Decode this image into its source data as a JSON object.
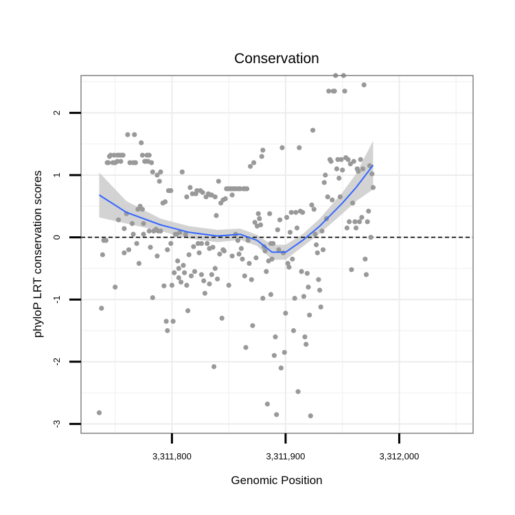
{
  "chart_data": {
    "type": "scatter",
    "title": "Conservation",
    "xlabel": "Genomic Position",
    "ylabel": "phyloP LRT conservation scores",
    "xlim": [
      3311720,
      3312065
    ],
    "ylim": [
      -3.15,
      2.6
    ],
    "x_ticks": [
      3311800,
      3311900,
      3312000
    ],
    "x_tick_labels": [
      "3,311,800",
      "3,311,900",
      "3,312,000"
    ],
    "x_minor_grid": [
      3311750,
      3311850,
      3311950,
      3312050
    ],
    "y_ticks": [
      -3,
      -2,
      -1,
      0,
      1,
      2
    ],
    "y_tick_labels": [
      "-3",
      "-2",
      "-1",
      "0",
      "1",
      "2"
    ],
    "grid": true,
    "reference_line": {
      "y": 0,
      "style": "dashed",
      "color": "#000000"
    },
    "colors": {
      "points": "#999999",
      "smooth_line": "#3366FF",
      "confidence_band": "#C8C8C8",
      "panel_border": "#808080"
    },
    "series": [
      {
        "kind": "points",
        "points": [
          [
            3311736,
            -2.82
          ],
          [
            3311738,
            -1.14
          ],
          [
            3311739,
            -0.28
          ],
          [
            3311740,
            -0.05
          ],
          [
            3311742,
            -0.05
          ],
          [
            3311743,
            1.2
          ],
          [
            3311744,
            1.2
          ],
          [
            3311745,
            1.3
          ],
          [
            3311746,
            1.32
          ],
          [
            3311748,
            1.2
          ],
          [
            3311749,
            1.32
          ],
          [
            3311750,
            1.2
          ],
          [
            3311750,
            -0.8
          ],
          [
            3311752,
            1.32
          ],
          [
            3311752,
            1.22
          ],
          [
            3311753,
            0.28
          ],
          [
            3311754,
            1.32
          ],
          [
            3311755,
            1.22
          ],
          [
            3311756,
            1.32
          ],
          [
            3311757,
            1.32
          ],
          [
            3311758,
            0.14
          ],
          [
            3311758,
            -0.25
          ],
          [
            3311760,
            0.38
          ],
          [
            3311761,
            1.65
          ],
          [
            3311762,
            -0.2
          ],
          [
            3311763,
            1.2
          ],
          [
            3311765,
            0.22
          ],
          [
            3311766,
            1.2
          ],
          [
            3311766,
            0.05
          ],
          [
            3311767,
            1.65
          ],
          [
            3311768,
            1.2
          ],
          [
            3311769,
            -0.1
          ],
          [
            3311770,
            0.45
          ],
          [
            3311771,
            -0.42
          ],
          [
            3311772,
            0.5
          ],
          [
            3311773,
            1.52
          ],
          [
            3311774,
            1.32
          ],
          [
            3311774,
            0.45
          ],
          [
            3311775,
            0.05
          ],
          [
            3311775,
            0.22
          ],
          [
            3311776,
            1.22
          ],
          [
            3311777,
            1.22
          ],
          [
            3311778,
            1.32
          ],
          [
            3311779,
            1.22
          ],
          [
            3311780,
            1.32
          ],
          [
            3311780,
            0.1
          ],
          [
            3311781,
            -0.16
          ],
          [
            3311782,
            1.2
          ],
          [
            3311783,
            -0.97
          ],
          [
            3311783,
            1.05
          ],
          [
            3311784,
            0.1
          ],
          [
            3311786,
            0.13
          ],
          [
            3311787,
            1.0
          ],
          [
            3311787,
            -0.3
          ],
          [
            3311788,
            0.1
          ],
          [
            3311789,
            0.9
          ],
          [
            3311790,
            1.05
          ],
          [
            3311790,
            0.1
          ],
          [
            3311792,
            0.55
          ],
          [
            3311793,
            -0.78
          ],
          [
            3311794,
            0.57
          ],
          [
            3311795,
            -1.35
          ],
          [
            3311796,
            -1.5
          ],
          [
            3311796,
            -0.2
          ],
          [
            3311797,
            0.75
          ],
          [
            3311799,
            0.75
          ],
          [
            3311799,
            -0.1
          ],
          [
            3311800,
            -0.77
          ],
          [
            3311801,
            -1.35
          ],
          [
            3311802,
            -0.57
          ],
          [
            3311803,
            0.05
          ],
          [
            3311804,
            0.05
          ],
          [
            3311805,
            -0.38
          ],
          [
            3311806,
            -0.65
          ],
          [
            3311806,
            -0.5
          ],
          [
            3311807,
            0.08
          ],
          [
            3311808,
            -0.72
          ],
          [
            3311809,
            1.05
          ],
          [
            3311810,
            -0.45
          ],
          [
            3311811,
            -0.57
          ],
          [
            3311812,
            0.05
          ],
          [
            3311813,
            0.65
          ],
          [
            3311813,
            -0.77
          ],
          [
            3311814,
            -1.18
          ],
          [
            3311815,
            -0.28
          ],
          [
            3311816,
            0.8
          ],
          [
            3311817,
            -0.62
          ],
          [
            3311818,
            0.7
          ],
          [
            3311819,
            -0.15
          ],
          [
            3311820,
            -0.55
          ],
          [
            3311821,
            0.7
          ],
          [
            3311822,
            0.75
          ],
          [
            3311823,
            -0.1
          ],
          [
            3311824,
            -0.25
          ],
          [
            3311825,
            0.75
          ],
          [
            3311826,
            -0.1
          ],
          [
            3311826,
            -0.6
          ],
          [
            3311827,
            0.72
          ],
          [
            3311828,
            -0.7
          ],
          [
            3311829,
            -0.9
          ],
          [
            3311830,
            0.65
          ],
          [
            3311831,
            -0.1
          ],
          [
            3311832,
            0.7
          ],
          [
            3311833,
            -0.18
          ],
          [
            3311833,
            -0.75
          ],
          [
            3311834,
            0.68
          ],
          [
            3311835,
            -0.6
          ],
          [
            3311835,
            0.68
          ],
          [
            3311836,
            -0.16
          ],
          [
            3311837,
            -2.08
          ],
          [
            3311838,
            0.65
          ],
          [
            3311838,
            -0.5
          ],
          [
            3311839,
            0.35
          ],
          [
            3311840,
            -0.67
          ],
          [
            3311841,
            0.9
          ],
          [
            3311842,
            -0.27
          ],
          [
            3311843,
            0.55
          ],
          [
            3311844,
            -1.3
          ],
          [
            3311845,
            -0.2
          ],
          [
            3311845,
            0.6
          ],
          [
            3311846,
            -0.22
          ],
          [
            3311847,
            0.62
          ],
          [
            3311848,
            0.78
          ],
          [
            3311849,
            0.78
          ],
          [
            3311850,
            -0.77
          ],
          [
            3311851,
            0.78
          ],
          [
            3311852,
            0.78
          ],
          [
            3311853,
            -0.3
          ],
          [
            3311853,
            0.68
          ],
          [
            3311854,
            0.78
          ],
          [
            3311855,
            0.78
          ],
          [
            3311856,
            0.05
          ],
          [
            3311857,
            0.78
          ],
          [
            3311858,
            -0.05
          ],
          [
            3311859,
            -0.27
          ],
          [
            3311859,
            0.78
          ],
          [
            3311860,
            0.78
          ],
          [
            3311861,
            -0.18
          ],
          [
            3311862,
            -0.35
          ],
          [
            3311863,
            0.78
          ],
          [
            3311864,
            0.78
          ],
          [
            3311864,
            -0.62
          ],
          [
            3311865,
            -1.77
          ],
          [
            3311866,
            0.78
          ],
          [
            3311867,
            -0.05
          ],
          [
            3311868,
            -0.42
          ],
          [
            3311869,
            1.14
          ],
          [
            3311870,
            -0.68
          ],
          [
            3311871,
            -1.42
          ],
          [
            3311872,
            1.2
          ],
          [
            3311873,
            0.24
          ],
          [
            3311874,
            -0.33
          ],
          [
            3311875,
            0.18
          ],
          [
            3311876,
            0.38
          ],
          [
            3311877,
            0.3
          ],
          [
            3311878,
            0.2
          ],
          [
            3311879,
            1.3
          ],
          [
            3311880,
            1.4
          ],
          [
            3311880,
            -0.98
          ],
          [
            3311881,
            -0.15
          ],
          [
            3311882,
            -0.22
          ],
          [
            3311883,
            -0.55
          ],
          [
            3311884,
            -2.68
          ],
          [
            3311885,
            -0.38
          ],
          [
            3311886,
            0.38
          ],
          [
            3311887,
            -0.1
          ],
          [
            3311887,
            -0.92
          ],
          [
            3311888,
            -0.35
          ],
          [
            3311889,
            -0.1
          ],
          [
            3311890,
            -1.9
          ],
          [
            3311891,
            -1.6
          ],
          [
            3311892,
            -2.85
          ],
          [
            3311893,
            0.12
          ],
          [
            3311894,
            -0.2
          ],
          [
            3311895,
            0.28
          ],
          [
            3311896,
            -2.1
          ],
          [
            3311897,
            1.44
          ],
          [
            3311898,
            -0.25
          ],
          [
            3311899,
            -1.85
          ],
          [
            3311900,
            -1.22
          ],
          [
            3311901,
            0.32
          ],
          [
            3311902,
            -0.42
          ],
          [
            3311903,
            -0.48
          ],
          [
            3311904,
            0.08
          ],
          [
            3311905,
            0.4
          ],
          [
            3311906,
            -0.35
          ],
          [
            3311907,
            -1.5
          ],
          [
            3311908,
            -0.98
          ],
          [
            3311909,
            0.4
          ],
          [
            3311910,
            0.15
          ],
          [
            3311911,
            -2.48
          ],
          [
            3311912,
            1.44
          ],
          [
            3311913,
            0.42
          ],
          [
            3311914,
            -0.55
          ],
          [
            3311915,
            0.4
          ],
          [
            3311916,
            -0.95
          ],
          [
            3311917,
            -1.6
          ],
          [
            3311918,
            -1.72
          ],
          [
            3311919,
            -0.58
          ],
          [
            3311920,
            -0.8
          ],
          [
            3311921,
            -1.25
          ],
          [
            3311922,
            -2.87
          ],
          [
            3311923,
            0.52
          ],
          [
            3311924,
            1.72
          ],
          [
            3311925,
            0.45
          ],
          [
            3311926,
            0.05
          ],
          [
            3311927,
            -0.12
          ],
          [
            3311928,
            -0.25
          ],
          [
            3311929,
            -0.68
          ],
          [
            3311930,
            -0.85
          ],
          [
            3311931,
            -1.12
          ],
          [
            3311932,
            0.1
          ],
          [
            3311933,
            -0.2
          ],
          [
            3311934,
            0.88
          ],
          [
            3311935,
            1.0
          ],
          [
            3311936,
            0.3
          ],
          [
            3311937,
            0.65
          ],
          [
            3311938,
            2.35
          ],
          [
            3311939,
            1.25
          ],
          [
            3311940,
            1.22
          ],
          [
            3311941,
            0.6
          ],
          [
            3311942,
            2.35
          ],
          [
            3311943,
            2.35
          ],
          [
            3311944,
            2.6
          ],
          [
            3311945,
            1.1
          ],
          [
            3311946,
            1.25
          ],
          [
            3311947,
            0.95
          ],
          [
            3311948,
            0.65
          ],
          [
            3311949,
            1.25
          ],
          [
            3311950,
            1.08
          ],
          [
            3311951,
            2.6
          ],
          [
            3311952,
            2.35
          ],
          [
            3311953,
            1.28
          ],
          [
            3311954,
            0.15
          ],
          [
            3311955,
            1.25
          ],
          [
            3311956,
            0.25
          ],
          [
            3311957,
            1.18
          ],
          [
            3311958,
            -0.52
          ],
          [
            3311959,
            0.55
          ],
          [
            3311960,
            1.22
          ],
          [
            3311961,
            0.25
          ],
          [
            3311962,
            0.15
          ],
          [
            3311963,
            1.1
          ],
          [
            3311964,
            1.06
          ],
          [
            3311965,
            0.25
          ],
          [
            3311966,
            1.25
          ],
          [
            3311967,
            0.32
          ],
          [
            3311968,
            1.1
          ],
          [
            3311969,
            2.45
          ],
          [
            3311970,
            -0.35
          ],
          [
            3311971,
            -0.6
          ],
          [
            3311972,
            0.25
          ],
          [
            3311973,
            0.42
          ],
          [
            3311974,
            1.15
          ],
          [
            3311975,
            0.0
          ],
          [
            3311976,
            1.02
          ],
          [
            3311977,
            0.8
          ]
        ]
      },
      {
        "kind": "smooth",
        "x": [
          3311736,
          3311760,
          3311790,
          3311815,
          3311840,
          3311860,
          3311875,
          3311888,
          3311900,
          3311915,
          3311930,
          3311950,
          3311962,
          3311977
        ],
        "y": [
          0.68,
          0.4,
          0.2,
          0.08,
          0.02,
          0.05,
          -0.05,
          -0.24,
          -0.24,
          -0.05,
          0.18,
          0.55,
          0.8,
          1.16
        ],
        "lower": [
          0.32,
          0.22,
          0.1,
          -0.02,
          -0.08,
          -0.04,
          -0.14,
          -0.36,
          -0.36,
          -0.15,
          0.06,
          0.38,
          0.58,
          0.77
        ],
        "upper": [
          1.04,
          0.58,
          0.3,
          0.18,
          0.12,
          0.14,
          0.04,
          -0.12,
          -0.12,
          0.05,
          0.3,
          0.72,
          1.02,
          1.55
        ]
      }
    ]
  }
}
